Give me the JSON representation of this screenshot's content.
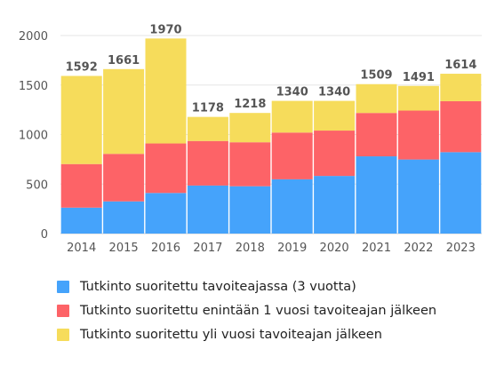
{
  "chart_data": {
    "type": "bar",
    "stacked": true,
    "categories": [
      "2014",
      "2015",
      "2016",
      "2017",
      "2018",
      "2019",
      "2020",
      "2021",
      "2022",
      "2023"
    ],
    "series": [
      {
        "name": "Tutkinto suoritettu tavoiteajassa (3 vuotta)",
        "color": "#45a3fb",
        "values": [
          262,
          325,
          410,
          485,
          478,
          548,
          582,
          780,
          748,
          822
        ]
      },
      {
        "name": "Tutkinto suoritettu enintään 1 vuosi tavoiteajan jälkeen",
        "color": "#fd6367",
        "values": [
          440,
          480,
          500,
          450,
          444,
          472,
          458,
          438,
          494,
          515
        ]
      },
      {
        "name": "Tutkinto suoritettu yli vuosi tavoiteajan jälkeen",
        "color": "#f6dc5b",
        "values": [
          890,
          856,
          1060,
          243,
          296,
          320,
          300,
          291,
          249,
          277
        ]
      }
    ],
    "totals": [
      "1592",
      "1661",
      "1970",
      "1178",
      "1218",
      "1340",
      "1340",
      "1509",
      "1491",
      "1614"
    ],
    "y_ticks": [
      "0",
      "500",
      "1000",
      "1500",
      "2000"
    ],
    "ylim": [
      0,
      2000
    ],
    "grid": true,
    "legend_position": "bottom"
  }
}
